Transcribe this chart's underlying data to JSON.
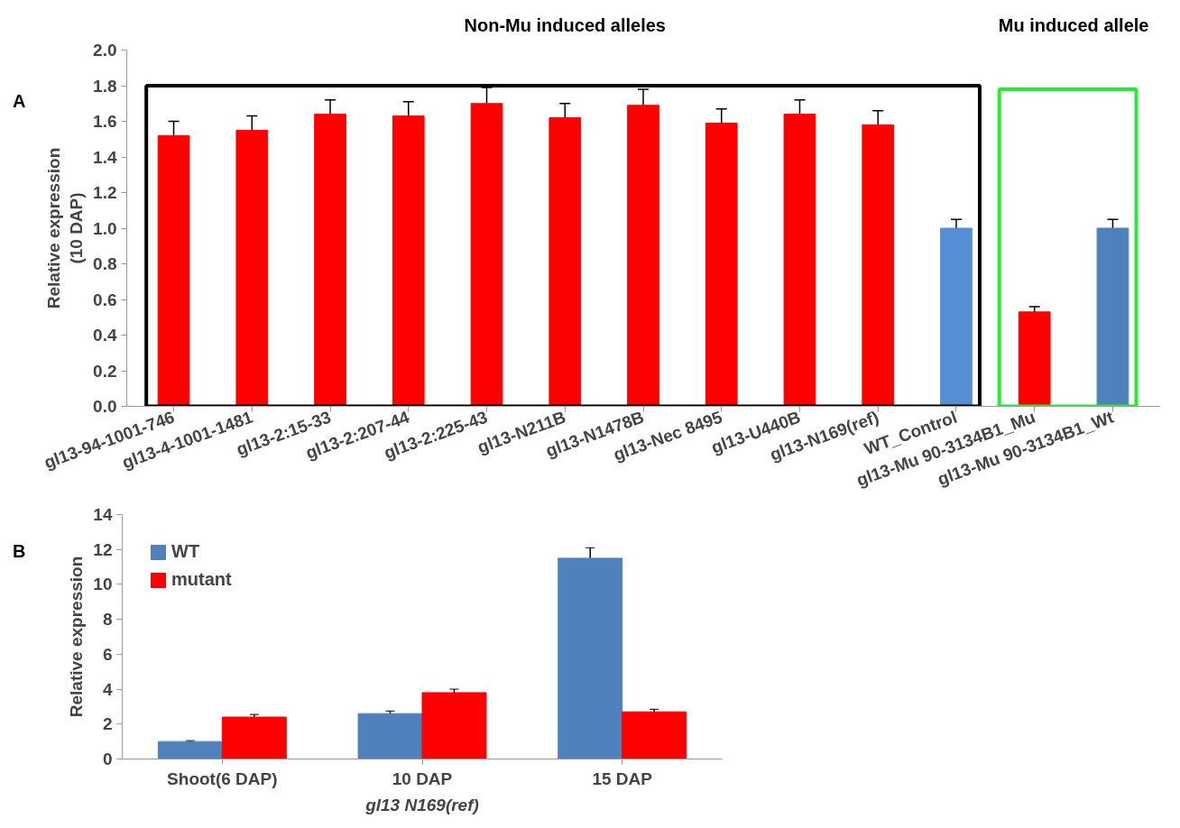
{
  "chart_data": [
    {
      "type": "bar",
      "ylabel": "Relative expression\n(10 DAP)",
      "categories": [
        "gl13-94-1001-746",
        "gl13-4-1001-1481",
        "gl13-2:15-33",
        "gl13-2:207-44",
        "gl13-2:225-43",
        "gl13-N211B",
        "gl13-N1478B",
        "gl13-Nec 8495",
        "gl13-U440B",
        "gl13-N169(ref)",
        "WT_Control",
        "gl13-Mu 90-3134B1_Mu",
        "gl13-Mu 90-3134B1_Wt"
      ],
      "values": [
        1.52,
        1.55,
        1.64,
        1.63,
        1.7,
        1.62,
        1.69,
        1.59,
        1.64,
        1.58,
        1.0,
        0.53,
        1.0
      ],
      "errors": [
        0.08,
        0.08,
        0.08,
        0.08,
        0.09,
        0.08,
        0.09,
        0.08,
        0.08,
        0.08,
        0.05,
        0.03,
        0.05
      ],
      "colors": [
        "#ff0000",
        "#ff0000",
        "#ff0000",
        "#ff0000",
        "#ff0000",
        "#ff0000",
        "#ff0000",
        "#ff0000",
        "#ff0000",
        "#ff0000",
        "#558ed5",
        "#ff0000",
        "#4f81bd"
      ],
      "ylim": [
        0,
        2
      ],
      "yticks": [
        {
          "value": 0,
          "label": "0.0"
        },
        0.2,
        0.4,
        0.6,
        0.8,
        {
          "value": 1,
          "label": "1.0"
        },
        1.2,
        1.4,
        1.6,
        1.8,
        {
          "value": 2,
          "label": "2.0"
        }
      ],
      "annotations": [
        "A",
        "Non-Mu induced alleles",
        "Mu induced allele"
      ],
      "grid": false
    },
    {
      "type": "bar",
      "ylabel": "Relative expression",
      "xlabel": "gl13 N169(ref)",
      "categories": [
        "Shoot(6 DAP)",
        "10 DAP",
        "15 DAP"
      ],
      "series": [
        {
          "name": "WT",
          "color": "#4f81bd",
          "values": [
            1.0,
            2.6,
            11.5
          ],
          "errors": [
            0.05,
            0.15,
            0.6
          ]
        },
        {
          "name": "mutant",
          "color": "#ff0000",
          "values": [
            2.4,
            3.8,
            2.7
          ],
          "errors": [
            0.15,
            0.2,
            0.15
          ]
        }
      ],
      "ylim": [
        0,
        14
      ],
      "yticks": [
        0,
        2,
        4,
        6,
        8,
        10,
        12,
        14
      ],
      "annotations": [
        "B"
      ],
      "grid": false,
      "legend": "top left"
    }
  ]
}
